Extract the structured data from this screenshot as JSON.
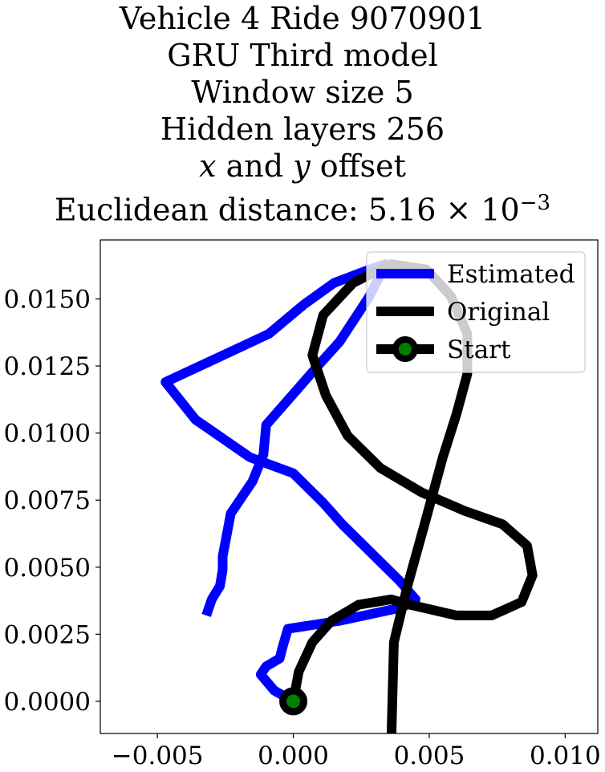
{
  "chart_data": {
    "type": "line",
    "title_lines": [
      "Vehicle 4 Ride 9070901",
      "GRU Third model",
      "Window size 5",
      "Hidden layers 256",
      "x and y offset",
      "Euclidean distance: 5.16 × 10^−3"
    ],
    "xlim": [
      -0.0071,
      0.0112
    ],
    "ylim": [
      -0.0012,
      0.0172
    ],
    "x_ticks": [
      -0.005,
      0.0,
      0.005,
      0.01
    ],
    "x_tick_labels": [
      "−0.005",
      "0.000",
      "0.005",
      "0.010"
    ],
    "y_ticks": [
      0.0,
      0.0025,
      0.005,
      0.0075,
      0.01,
      0.0125,
      0.015
    ],
    "y_tick_labels": [
      "0.0000",
      "0.0025",
      "0.0050",
      "0.0075",
      "0.0100",
      "0.0125",
      "0.0150"
    ],
    "grid": false,
    "legend_position": "top-right",
    "series": [
      {
        "name": "Estimated",
        "color": "#0000ff",
        "points": [
          [
            -0.0032,
            0.0032
          ],
          [
            -0.003,
            0.0038
          ],
          [
            -0.0027,
            0.0043
          ],
          [
            -0.0026,
            0.0049
          ],
          [
            -0.0026,
            0.0054
          ],
          [
            -0.0023,
            0.007
          ],
          [
            -0.0015,
            0.0082
          ],
          [
            -0.0011,
            0.0092
          ],
          [
            -0.001,
            0.0103
          ],
          [
            0.0009,
            0.0125
          ],
          [
            0.0017,
            0.0134
          ],
          [
            0.0028,
            0.0151
          ],
          [
            0.0034,
            0.0163
          ],
          [
            0.0028,
            0.0161
          ],
          [
            0.0015,
            0.0156
          ],
          [
            0.0004,
            0.0148
          ],
          [
            -0.0009,
            0.0137
          ],
          [
            -0.0047,
            0.0119
          ],
          [
            -0.0036,
            0.0105
          ],
          [
            -0.0016,
            0.0091
          ],
          [
            0.0,
            0.0085
          ],
          [
            0.0011,
            0.0074
          ],
          [
            0.0018,
            0.0066
          ],
          [
            0.0039,
            0.0045
          ],
          [
            0.0045,
            0.0038
          ],
          [
            0.004,
            0.0035
          ],
          [
            0.0017,
            0.003
          ],
          [
            -0.0002,
            0.0027
          ],
          [
            -0.0004,
            0.002
          ],
          [
            -0.0005,
            0.0016
          ],
          [
            -0.001,
            0.0013
          ],
          [
            -0.0012,
            0.001
          ],
          [
            -0.0007,
            0.0004
          ],
          [
            0.0,
            0.0
          ]
        ]
      },
      {
        "name": "Original",
        "color": "#000000",
        "points": [
          [
            0.0036,
            -0.0017
          ],
          [
            0.0037,
            0.0022
          ],
          [
            0.0042,
            0.0043
          ],
          [
            0.0048,
            0.0065
          ],
          [
            0.0055,
            0.0091
          ],
          [
            0.006,
            0.0107
          ],
          [
            0.0064,
            0.0122
          ],
          [
            0.0064,
            0.0137
          ],
          [
            0.0058,
            0.0151
          ],
          [
            0.0049,
            0.0161
          ],
          [
            0.0036,
            0.0163
          ],
          [
            0.0022,
            0.0156
          ],
          [
            0.0011,
            0.0144
          ],
          [
            0.0007,
            0.0129
          ],
          [
            0.0012,
            0.0114
          ],
          [
            0.002,
            0.0099
          ],
          [
            0.0032,
            0.0087
          ],
          [
            0.0047,
            0.0078
          ],
          [
            0.0063,
            0.0071
          ],
          [
            0.0077,
            0.0066
          ],
          [
            0.0086,
            0.0058
          ],
          [
            0.0088,
            0.0047
          ],
          [
            0.0084,
            0.0037
          ],
          [
            0.0073,
            0.0032
          ],
          [
            0.006,
            0.0032
          ],
          [
            0.0043,
            0.0036
          ],
          [
            0.0036,
            0.0038
          ],
          [
            0.0024,
            0.0036
          ],
          [
            0.0014,
            0.003
          ],
          [
            0.0007,
            0.0022
          ],
          [
            0.0002,
            0.0011
          ],
          [
            0.0,
            0.0
          ]
        ]
      }
    ],
    "start": {
      "name": "Start",
      "x": 0.0,
      "y": 0.0,
      "color": "#008000",
      "edge_color": "#000000"
    }
  }
}
